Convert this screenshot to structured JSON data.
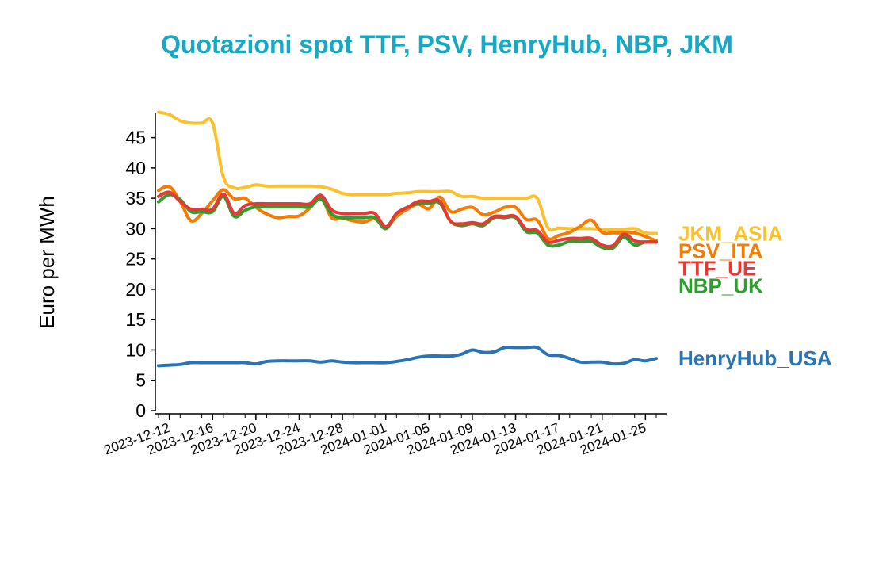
{
  "chart_data": {
    "type": "line",
    "title": "Quotazioni spot TTF, PSV, HenryHub, NBP, JKM",
    "ylabel": "Euro per MWh",
    "xlabel": "",
    "ylim": [
      0,
      49
    ],
    "yticks": [
      0,
      5,
      10,
      15,
      20,
      25,
      30,
      35,
      40,
      45
    ],
    "xtick_labels": [
      "2023-12-12",
      "2023-12-16",
      "2023-12-20",
      "2023-12-24",
      "2023-12-28",
      "2024-01-01",
      "2024-01-05",
      "2024-01-09",
      "2024-01-13",
      "2024-01-17",
      "2024-01-21",
      "2024-01-25"
    ],
    "grid": false,
    "legend": "right-of-lines",
    "x": [
      "2023-12-11",
      "2023-12-12",
      "2023-12-13",
      "2023-12-14",
      "2023-12-15",
      "2023-12-16",
      "2023-12-17",
      "2023-12-18",
      "2023-12-19",
      "2023-12-20",
      "2023-12-21",
      "2023-12-22",
      "2023-12-23",
      "2023-12-24",
      "2023-12-25",
      "2023-12-26",
      "2023-12-27",
      "2023-12-28",
      "2023-12-29",
      "2023-12-30",
      "2023-12-31",
      "2024-01-01",
      "2024-01-02",
      "2024-01-03",
      "2024-01-04",
      "2024-01-05",
      "2024-01-06",
      "2024-01-07",
      "2024-01-08",
      "2024-01-09",
      "2024-01-10",
      "2024-01-11",
      "2024-01-12",
      "2024-01-13",
      "2024-01-14",
      "2024-01-15",
      "2024-01-16",
      "2024-01-17",
      "2024-01-18",
      "2024-01-19",
      "2024-01-20",
      "2024-01-21",
      "2024-01-22",
      "2024-01-23",
      "2024-01-24",
      "2024-01-25",
      "2024-01-26"
    ],
    "series": [
      {
        "name": "JKM_ASIA",
        "color": "#fbc02d",
        "values": [
          49.2,
          48.8,
          47.8,
          47.4,
          47.4,
          47.4,
          38.5,
          36.7,
          36.8,
          37.2,
          37.0,
          37.0,
          37.0,
          37.0,
          37.0,
          36.9,
          36.5,
          35.8,
          35.6,
          35.6,
          35.6,
          35.6,
          35.8,
          35.9,
          36.1,
          36.1,
          36.1,
          36.1,
          35.3,
          35.3,
          35.0,
          35.0,
          35.0,
          35.0,
          35.0,
          35.0,
          30.1,
          30.1,
          30.0,
          30.0,
          30.0,
          29.9,
          29.9,
          29.9,
          30.0,
          29.3,
          29.2
        ]
      },
      {
        "name": "PSV_ITA",
        "color": "#f57c00",
        "values": [
          36.3,
          36.9,
          34.5,
          31.3,
          32.5,
          34.6,
          36.4,
          34.9,
          35.0,
          33.5,
          32.4,
          31.8,
          32.0,
          32.1,
          33.4,
          35.1,
          31.8,
          31.7,
          31.3,
          31.1,
          31.6,
          30.2,
          32.0,
          33.2,
          34.0,
          33.3,
          35.2,
          32.8,
          33.2,
          33.5,
          32.3,
          32.7,
          33.5,
          33.5,
          31.5,
          31.4,
          28.4,
          28.9,
          29.4,
          30.4,
          31.4,
          29.4,
          29.3,
          29.3,
          29.3,
          28.7,
          28.0
        ]
      },
      {
        "name": "TTF_UE",
        "color": "#e53935",
        "values": [
          35.3,
          36.0,
          34.5,
          33.2,
          33.2,
          33.2,
          35.7,
          32.5,
          33.8,
          34.1,
          34.1,
          34.1,
          34.1,
          34.1,
          34.1,
          35.5,
          33.1,
          32.5,
          32.5,
          32.5,
          32.5,
          30.3,
          32.5,
          33.5,
          34.5,
          34.5,
          34.5,
          31.2,
          30.8,
          31.0,
          30.8,
          32.0,
          32.0,
          32.0,
          29.9,
          29.7,
          27.8,
          28.1,
          28.4,
          28.4,
          28.4,
          27.3,
          27.2,
          29.1,
          28.0,
          27.8,
          27.8
        ]
      },
      {
        "name": "NBP_UK",
        "color": "#2e9e2e",
        "values": [
          34.4,
          35.6,
          34.8,
          32.8,
          32.8,
          32.8,
          35.3,
          32.0,
          33.0,
          33.6,
          33.6,
          33.6,
          33.6,
          33.6,
          33.6,
          34.9,
          32.4,
          31.8,
          31.8,
          31.8,
          31.8,
          30.0,
          32.5,
          33.5,
          34.2,
          34.2,
          34.2,
          31.2,
          30.5,
          30.8,
          30.5,
          31.8,
          31.8,
          31.8,
          29.5,
          29.3,
          27.3,
          27.3,
          27.9,
          27.9,
          27.9,
          26.9,
          26.8,
          28.6,
          27.3,
          27.8,
          27.8
        ]
      },
      {
        "name": "HenryHub_USA",
        "color": "#2a74b3",
        "values": [
          7.4,
          7.5,
          7.6,
          7.9,
          7.9,
          7.9,
          7.9,
          7.9,
          7.9,
          7.7,
          8.1,
          8.2,
          8.2,
          8.2,
          8.2,
          8.0,
          8.2,
          8.0,
          7.9,
          7.9,
          7.9,
          7.9,
          8.1,
          8.4,
          8.8,
          9.0,
          9.0,
          9.0,
          9.3,
          10.0,
          9.6,
          9.7,
          10.4,
          10.4,
          10.4,
          10.4,
          9.2,
          9.1,
          8.6,
          8.0,
          8.0,
          8.0,
          7.7,
          7.8,
          8.4,
          8.2,
          8.6
        ]
      }
    ]
  }
}
